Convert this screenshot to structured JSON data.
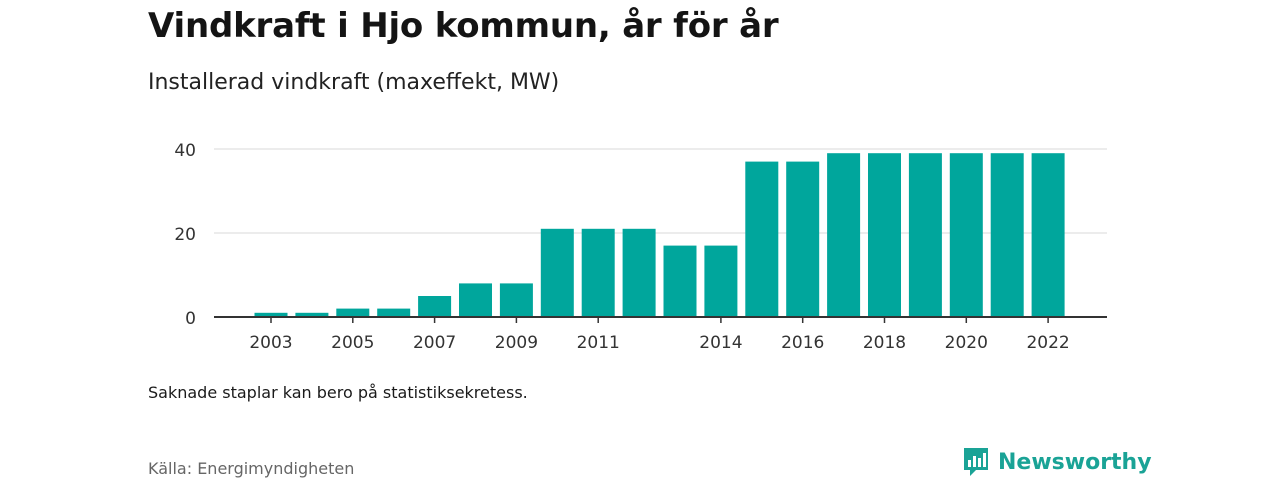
{
  "title": "Vindkraft i Hjo kommun, år för år",
  "subtitle": "Installerad vindkraft (maxeffekt, MW)",
  "note": "Saknade staplar kan bero på statistiksekretess.",
  "source": "Källa: Energimyndigheten",
  "brand": {
    "name": "Newsworthy",
    "icon": "newsworthy-logo-icon",
    "color": "#1aa396"
  },
  "chart_data": {
    "type": "bar",
    "categories": [
      "2003",
      "2004",
      "2005",
      "2006",
      "2007",
      "2008",
      "2009",
      "2010",
      "2011",
      "2012",
      "2013",
      "2014",
      "2015",
      "2016",
      "2017",
      "2018",
      "2019",
      "2020",
      "2021",
      "2022"
    ],
    "values": [
      1,
      1,
      2,
      2,
      5,
      8,
      8,
      21,
      21,
      21,
      17,
      17,
      37,
      37,
      39,
      39,
      39,
      39,
      39,
      39
    ],
    "tick_labels": [
      "2003",
      "2005",
      "2007",
      "2009",
      "2011",
      "2014",
      "2016",
      "2018",
      "2020",
      "2022"
    ],
    "y_ticks": [
      0,
      20,
      40
    ],
    "ylim": [
      0,
      43
    ],
    "grid": true,
    "bar_color": "#00a69c",
    "title": "Vindkraft i Hjo kommun, år för år",
    "ylabel": "",
    "xlabel": ""
  }
}
